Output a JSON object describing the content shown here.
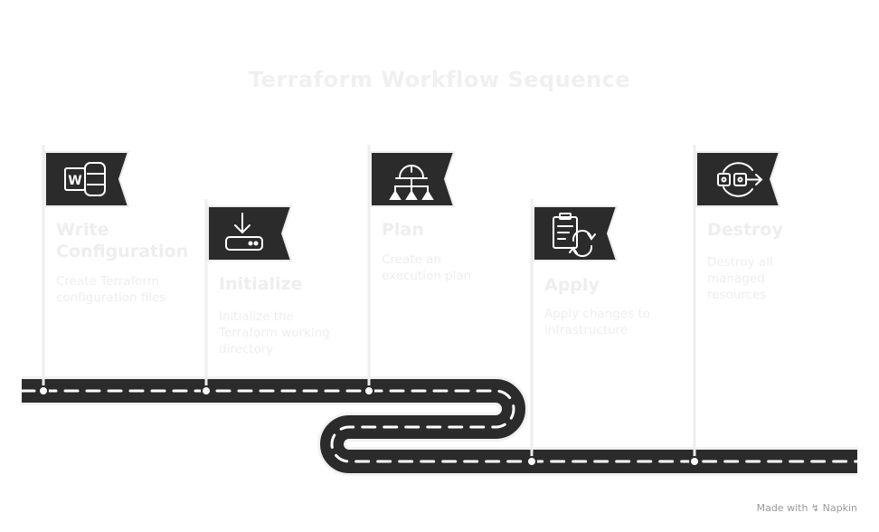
{
  "title": "Terraform Workflow Sequence",
  "steps": [
    {
      "title_line1": "Write",
      "title_line2": "Configuration",
      "desc_line1": "Create Terraform",
      "desc_line2": "configuration files",
      "desc_line3": "",
      "icon": "word-document-icon"
    },
    {
      "title_line1": "Initialize",
      "title_line2": "",
      "desc_line1": "Initialize the",
      "desc_line2": "Terraform working",
      "desc_line3": "directory",
      "icon": "download-drive-icon"
    },
    {
      "title_line1": "Plan",
      "title_line2": "",
      "desc_line1": "Create an",
      "desc_line2": "execution plan",
      "desc_line3": "",
      "icon": "hardhat-hierarchy-icon"
    },
    {
      "title_line1": "Apply",
      "title_line2": "",
      "desc_line1": "Apply changes to",
      "desc_line2": "infrastructure",
      "desc_line3": "",
      "icon": "clipboard-refresh-icon"
    },
    {
      "title_line1": "Destroy",
      "title_line2": "",
      "desc_line1": "Destroy all",
      "desc_line2": "managed",
      "desc_line3": "resources",
      "icon": "pipeline-arrow-icon"
    }
  ],
  "credit": {
    "made_with": "Made with",
    "brand": "Napkin"
  },
  "colors": {
    "road": "#2b2b2b",
    "flag": "#2b2b2b",
    "pole": "#eeeeee",
    "text": "#eeeeee"
  }
}
